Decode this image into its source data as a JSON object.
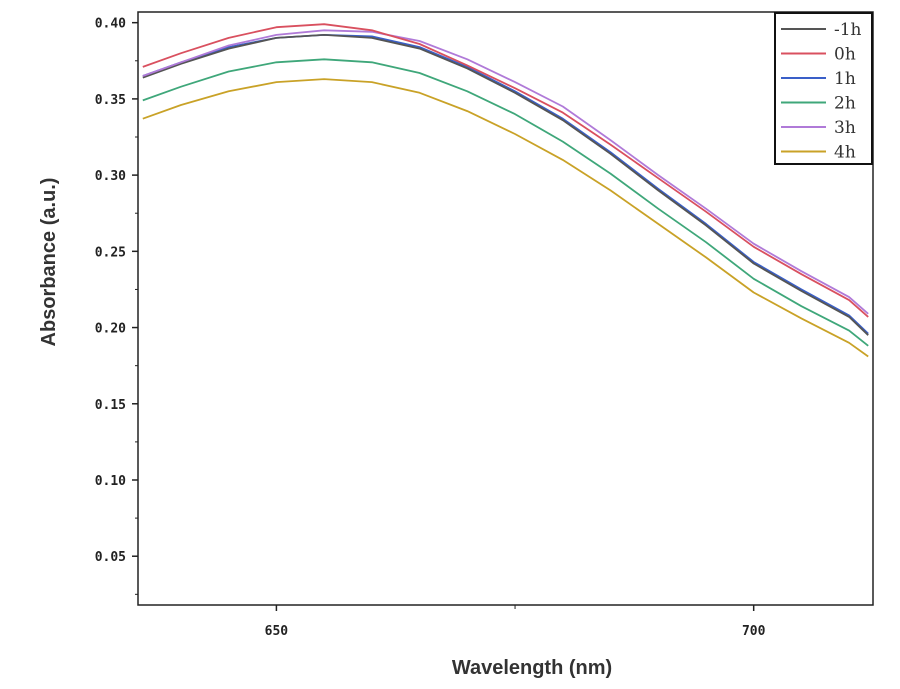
{
  "chart_data": {
    "type": "line",
    "title": "",
    "xlabel": "Wavelength (nm)",
    "ylabel": "Absorbance (a.u.)",
    "xlim": [
      635.5,
      712.5
    ],
    "ylim": [
      0.018,
      0.407
    ],
    "xticks": [
      650,
      700
    ],
    "xtick_labels": [
      "650",
      "700"
    ],
    "xminor": [
      675
    ],
    "yticks": [
      0.05,
      0.1,
      0.15,
      0.2,
      0.25,
      0.3,
      0.35,
      0.4
    ],
    "ytick_labels": [
      "0.05",
      "0.10",
      "0.15",
      "0.20",
      "0.25",
      "0.30",
      "0.35",
      "0.40"
    ],
    "yminor": [
      0.025,
      0.075,
      0.125,
      0.175,
      0.225,
      0.275,
      0.325,
      0.375
    ],
    "grid": false,
    "legend_position": "top-right",
    "x": [
      636,
      640,
      645,
      650,
      655,
      660,
      665,
      670,
      675,
      680,
      685,
      690,
      695,
      700,
      705,
      710,
      712
    ],
    "series": [
      {
        "name": "-1h",
        "color": "#555555",
        "values": [
          0.364,
          0.373,
          0.383,
          0.39,
          0.392,
          0.39,
          0.383,
          0.37,
          0.354,
          0.336,
          0.314,
          0.29,
          0.267,
          0.242,
          0.224,
          0.207,
          0.195
        ]
      },
      {
        "name": "0h",
        "color": "#d9505f",
        "values": [
          0.371,
          0.38,
          0.39,
          0.397,
          0.399,
          0.395,
          0.386,
          0.372,
          0.357,
          0.341,
          0.32,
          0.298,
          0.276,
          0.253,
          0.235,
          0.218,
          0.207
        ]
      },
      {
        "name": "1h",
        "color": "#3a5fc8",
        "values": [
          0.365,
          0.374,
          0.384,
          0.39,
          0.392,
          0.391,
          0.384,
          0.371,
          0.355,
          0.337,
          0.315,
          0.291,
          0.268,
          0.243,
          0.225,
          0.208,
          0.196
        ]
      },
      {
        "name": "2h",
        "color": "#3fa77a",
        "values": [
          0.349,
          0.358,
          0.368,
          0.374,
          0.376,
          0.374,
          0.367,
          0.355,
          0.34,
          0.322,
          0.301,
          0.278,
          0.256,
          0.232,
          0.214,
          0.198,
          0.188
        ]
      },
      {
        "name": "3h",
        "color": "#b07ad8",
        "values": [
          0.365,
          0.374,
          0.385,
          0.392,
          0.395,
          0.394,
          0.388,
          0.376,
          0.361,
          0.345,
          0.323,
          0.3,
          0.278,
          0.255,
          0.237,
          0.22,
          0.209
        ]
      },
      {
        "name": "4h",
        "color": "#c9a227",
        "values": [
          0.337,
          0.346,
          0.355,
          0.361,
          0.363,
          0.361,
          0.354,
          0.342,
          0.327,
          0.31,
          0.29,
          0.268,
          0.246,
          0.223,
          0.206,
          0.19,
          0.181
        ]
      }
    ]
  }
}
